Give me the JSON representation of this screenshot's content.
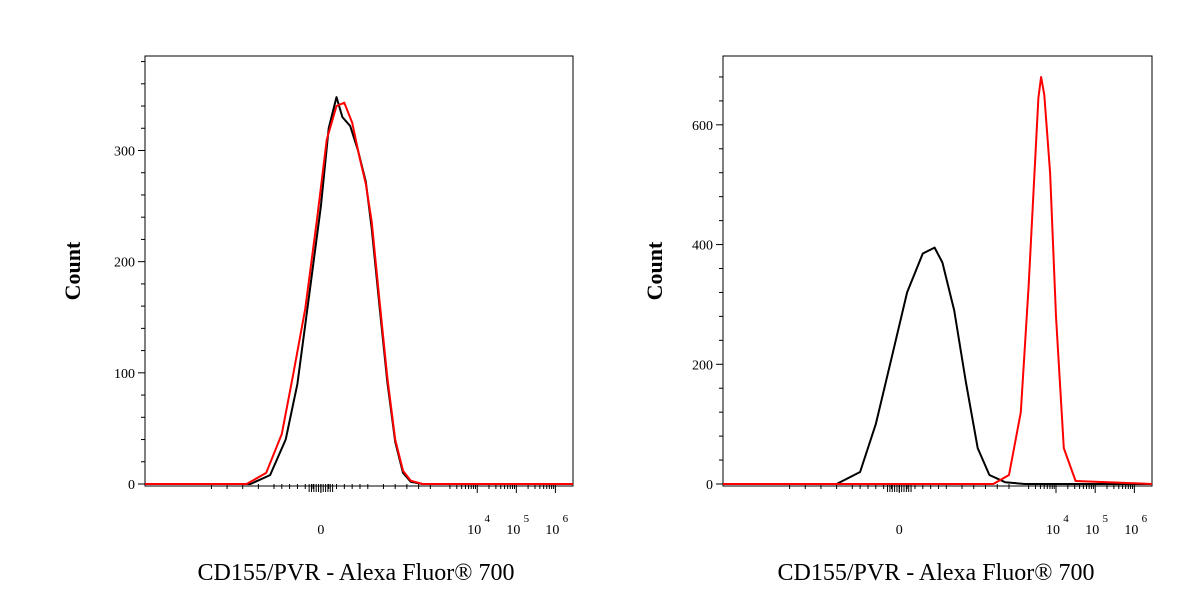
{
  "chart_data": [
    {
      "type": "line",
      "title": "",
      "xlabel": "CD155/PVR - Alexa Fluor® 700",
      "ylabel": "Count",
      "ylim": [
        0,
        385
      ],
      "xlim": [
        -4.5,
        6.45
      ],
      "x_ticks": [
        {
          "value": 0,
          "label": "0",
          "exp": ""
        },
        {
          "value": 4,
          "label": "10",
          "exp": "4"
        },
        {
          "value": 5,
          "label": "10",
          "exp": "5"
        },
        {
          "value": 6,
          "label": "10",
          "exp": "6"
        }
      ],
      "y_ticks": [
        0,
        100,
        200,
        300
      ],
      "series": [
        {
          "color": "#000000",
          "x": [
            -4.5,
            -1.8,
            -1.3,
            -0.9,
            -0.6,
            -0.3,
            0.0,
            0.2,
            0.4,
            0.55,
            0.75,
            0.95,
            1.15,
            1.3,
            1.5,
            1.7,
            1.9,
            2.1,
            2.3,
            2.6,
            3.1,
            6.45
          ],
          "y": [
            0,
            0,
            8,
            40,
            90,
            170,
            250,
            320,
            348,
            330,
            322,
            300,
            272,
            230,
            160,
            92,
            38,
            10,
            2,
            0,
            0,
            0
          ]
        },
        {
          "color": "#ff0000",
          "x": [
            -4.5,
            -1.9,
            -1.4,
            -1.0,
            -0.7,
            -0.4,
            -0.1,
            0.15,
            0.4,
            0.6,
            0.8,
            1.0,
            1.15,
            1.3,
            1.5,
            1.7,
            1.9,
            2.1,
            2.3,
            2.6,
            3.1,
            6.45
          ],
          "y": [
            0,
            0,
            10,
            45,
            100,
            158,
            238,
            310,
            340,
            343,
            325,
            292,
            270,
            236,
            165,
            96,
            40,
            12,
            3,
            0,
            0,
            0
          ]
        }
      ]
    },
    {
      "type": "line",
      "title": "",
      "xlabel": "CD155/PVR - Alexa Fluor® 700",
      "ylabel": "Count",
      "ylim": [
        0,
        715
      ],
      "xlim": [
        -4.5,
        6.45
      ],
      "x_ticks": [
        {
          "value": 0,
          "label": "0",
          "exp": ""
        },
        {
          "value": 4,
          "label": "10",
          "exp": "4"
        },
        {
          "value": 5,
          "label": "10",
          "exp": "5"
        },
        {
          "value": 6,
          "label": "10",
          "exp": "6"
        }
      ],
      "y_ticks": [
        0,
        200,
        400,
        600
      ],
      "series": [
        {
          "color": "#000000",
          "x": [
            -4.5,
            -1.6,
            -1.0,
            -0.6,
            -0.2,
            0.2,
            0.6,
            0.9,
            1.1,
            1.4,
            1.7,
            2.0,
            2.3,
            2.7,
            3.2,
            6.45
          ],
          "y": [
            0,
            0,
            20,
            100,
            210,
            320,
            385,
            395,
            370,
            290,
            170,
            60,
            15,
            3,
            0,
            0
          ]
        },
        {
          "color": "#ff0000",
          "x": [
            -4.5,
            2.4,
            2.8,
            3.1,
            3.3,
            3.45,
            3.55,
            3.62,
            3.7,
            3.85,
            4.0,
            4.2,
            4.5,
            6.45
          ],
          "y": [
            0,
            0,
            15,
            120,
            330,
            520,
            645,
            680,
            650,
            520,
            280,
            60,
            5,
            0
          ]
        }
      ]
    }
  ]
}
